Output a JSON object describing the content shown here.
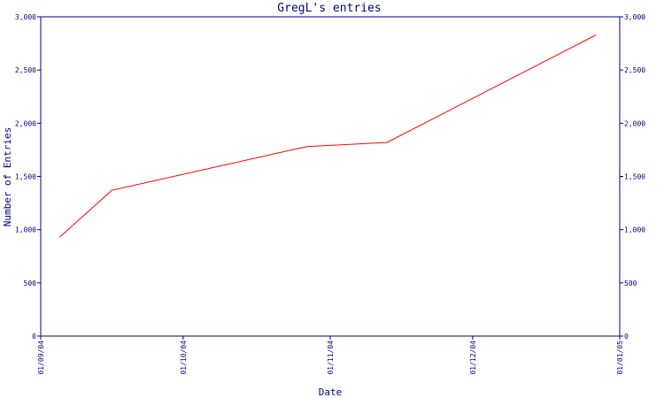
{
  "chart_data": {
    "type": "line",
    "title": "GregL's entries",
    "xlabel": "Date",
    "ylabel": "Number of Entries",
    "x_ticks": [
      "01/09/04",
      "01/10/04",
      "01/11/04",
      "01/12/04",
      "01/01/05"
    ],
    "x_range": [
      "01/09/04",
      "01/01/05"
    ],
    "y_ticks": [
      "0",
      "500",
      "1,000",
      "1,500",
      "2,000",
      "2,500",
      "3,000"
    ],
    "ylim": [
      0,
      3000
    ],
    "right_axis": true,
    "grid": false,
    "legend": "none",
    "series": [
      {
        "x": [
          "2004-09-05",
          "2004-09-16",
          "2004-10-27",
          "2004-11-13",
          "2004-12-27"
        ],
        "y": [
          930,
          1370,
          1780,
          1820,
          2830
        ]
      }
    ],
    "colors": {
      "axis": "#000080",
      "line": "#ff0000"
    }
  }
}
